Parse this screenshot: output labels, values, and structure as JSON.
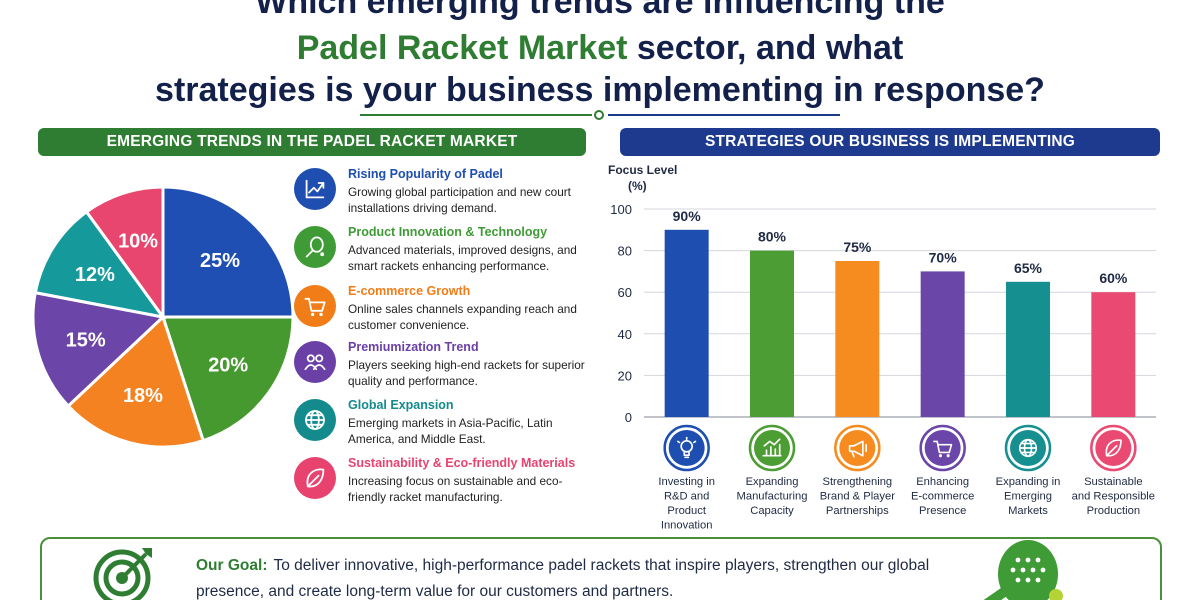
{
  "title": {
    "line1": "Which emerging trends are influencing the",
    "line2_highlight": "Padel Racket Market",
    "line2_rest": " sector, and what",
    "line3": "strategies is your business implementing in response?"
  },
  "left_panel": {
    "header": "EMERGING TRENDS IN THE PADEL RACKET MARKET",
    "trends": [
      {
        "title": "Rising Popularity of Padel",
        "desc": "Growing global participation and new court installations driving demand.",
        "color": "#1e4fb0",
        "icon": "growth-chart-icon"
      },
      {
        "title": "Product Innovation & Technology",
        "desc": "Advanced materials, improved designs, and smart rackets enhancing performance.",
        "color": "#3f9b35",
        "icon": "racket-icon"
      },
      {
        "title": "E-commerce Growth",
        "desc": "Online sales channels expanding reach and customer convenience.",
        "color": "#f07d18",
        "icon": "cart-icon"
      },
      {
        "title": "Premiumization Trend",
        "desc": "Players seeking high-end rackets for superior quality and performance.",
        "color": "#6a3fa6",
        "icon": "people-icon"
      },
      {
        "title": "Global Expansion",
        "desc": "Emerging markets in Asia-Pacific, Latin America, and Middle East.",
        "color": "#138a8c",
        "icon": "globe-icon"
      },
      {
        "title": "Sustainability & Eco-friendly Materials",
        "desc": "Increasing focus on sustainable and eco-friendly racket manufacturing.",
        "color": "#e8436f",
        "icon": "leaf-icon"
      }
    ]
  },
  "right_panel": {
    "header": "STRATEGIES OUR BUSINESS IS IMPLEMENTING"
  },
  "chart_data": [
    {
      "type": "pie",
      "title": "",
      "labels": [
        "Rising Popularity of Padel",
        "Product Innovation & Technology",
        "E-commerce Growth",
        "Premiumization Trend",
        "Global Expansion",
        "Sustainability & Eco-friendly Materials"
      ],
      "values": [
        25,
        20,
        18,
        15,
        12,
        10
      ],
      "value_labels": [
        "25%",
        "20%",
        "18%",
        "15%",
        "12%",
        "10%"
      ],
      "colors": [
        "#1f4fb3",
        "#46992f",
        "#f48221",
        "#6b45a8",
        "#15999b",
        "#e8456f"
      ]
    },
    {
      "type": "bar",
      "title": "",
      "ylabel": "Focus Level (%)",
      "ylabel_lines": [
        "Focus Level",
        "(%)"
      ],
      "ylim": [
        0,
        100
      ],
      "yticks": [
        0,
        20,
        40,
        60,
        80,
        100
      ],
      "grid": true,
      "categories": [
        "Investing in R&D and Product Innovation",
        "Expanding Manufacturing Capacity",
        "Strengthening Brand & Player Partnerships",
        "Enhancing E-commerce Presence",
        "Expanding in Emerging Markets",
        "Sustainable and Responsible Production"
      ],
      "category_lines": [
        [
          "Investing in",
          "R&D and",
          "Product",
          "Innovation"
        ],
        [
          "Expanding",
          "Manufacturing",
          "Capacity"
        ],
        [
          "Strengthening",
          "Brand & Player",
          "Partnerships"
        ],
        [
          "Enhancing",
          "E-commerce",
          "Presence"
        ],
        [
          "Expanding in",
          "Emerging",
          "Markets"
        ],
        [
          "Sustainable",
          "and Responsible",
          "Production"
        ]
      ],
      "values": [
        90,
        80,
        75,
        70,
        65,
        60
      ],
      "value_labels": [
        "90%",
        "80%",
        "75%",
        "70%",
        "65%",
        "60%"
      ],
      "colors": [
        "#1e4fb0",
        "#4c9d34",
        "#f68c1f",
        "#6a46a8",
        "#168f91",
        "#ea4a72"
      ],
      "icons": [
        "lightbulb-icon",
        "factory-chart-icon",
        "megaphone-icon",
        "cart-icon",
        "globe-icon",
        "leaf-icon"
      ]
    }
  ],
  "goal": {
    "label": "Our Goal:",
    "text": "To deliver innovative, high-performance padel rackets that inspire players, strengthen our global presence, and create long-term value for our customers and partners.",
    "icon": "target-icon",
    "decor_icon": "padel-racket-icon"
  }
}
